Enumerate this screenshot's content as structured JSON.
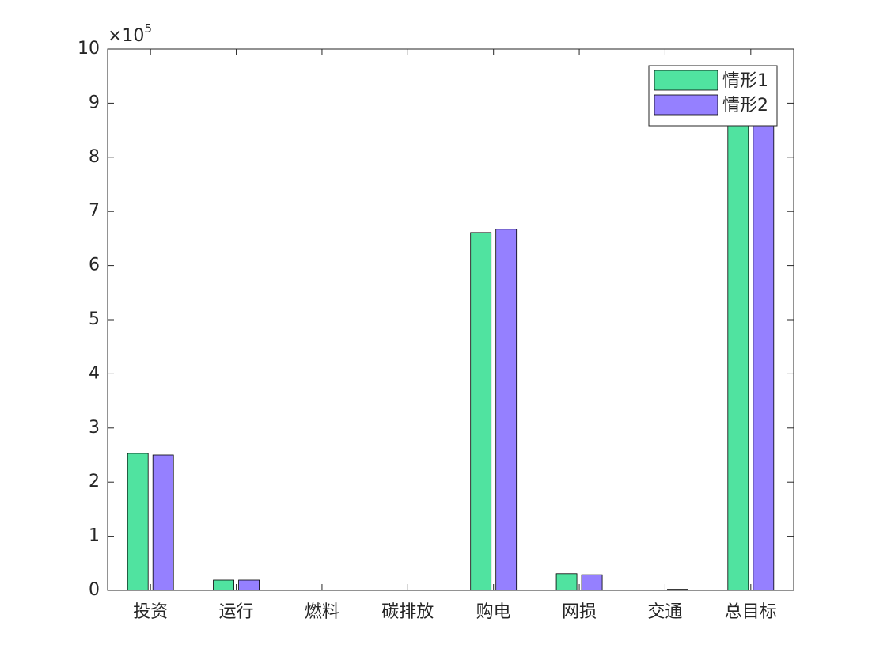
{
  "chart_data": {
    "type": "bar",
    "y_multiplier": {
      "base": "×10",
      "exponent": "5"
    },
    "categories": [
      "投资",
      "运行",
      "燃料",
      "碳排放",
      "购电",
      "网损",
      "交通",
      "总目标"
    ],
    "series": [
      {
        "name": "情形1",
        "color": "#50e3a0",
        "values": [
          2.53,
          0.19,
          0,
          0,
          6.61,
          0.31,
          0,
          9.64
        ]
      },
      {
        "name": "情形2",
        "color": "#9580ff",
        "values": [
          2.5,
          0.19,
          0,
          0,
          6.67,
          0.29,
          0.02,
          9.67
        ]
      }
    ],
    "ylim": [
      0,
      10
    ],
    "yticks": [
      0,
      1,
      2,
      3,
      4,
      5,
      6,
      7,
      8,
      9,
      10
    ],
    "grid": false,
    "legend": "top-right"
  }
}
